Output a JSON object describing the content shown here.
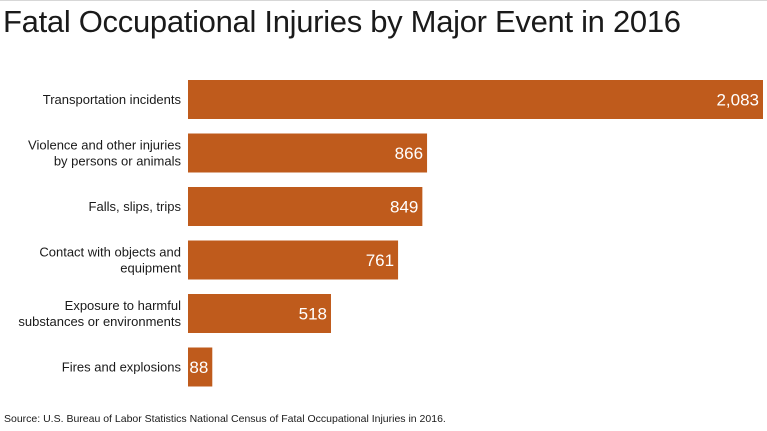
{
  "chart_data": {
    "type": "bar",
    "orientation": "horizontal",
    "title": "Fatal Occupational Injuries by Major Event in 2016",
    "categories": [
      [
        "Transportation incidents"
      ],
      [
        "Violence and other injuries",
        "by persons or animals"
      ],
      [
        "Falls, slips, trips"
      ],
      [
        "Contact with objects and",
        "equipment"
      ],
      [
        "Exposure to harmful",
        "substances or environments"
      ],
      [
        "Fires and explosions"
      ]
    ],
    "values": [
      2083,
      866,
      849,
      761,
      518,
      88
    ],
    "value_labels": [
      "2,083",
      "866",
      "849",
      "761",
      "518",
      "88"
    ],
    "xlim": [
      0,
      2083
    ],
    "grid": false,
    "legend": "none",
    "bar_color": "#bf5b1c",
    "value_label_color": "#ffffff",
    "source": "Source: U.S. Bureau of Labor Statistics National Census of Fatal Occupational Injuries in 2016."
  }
}
